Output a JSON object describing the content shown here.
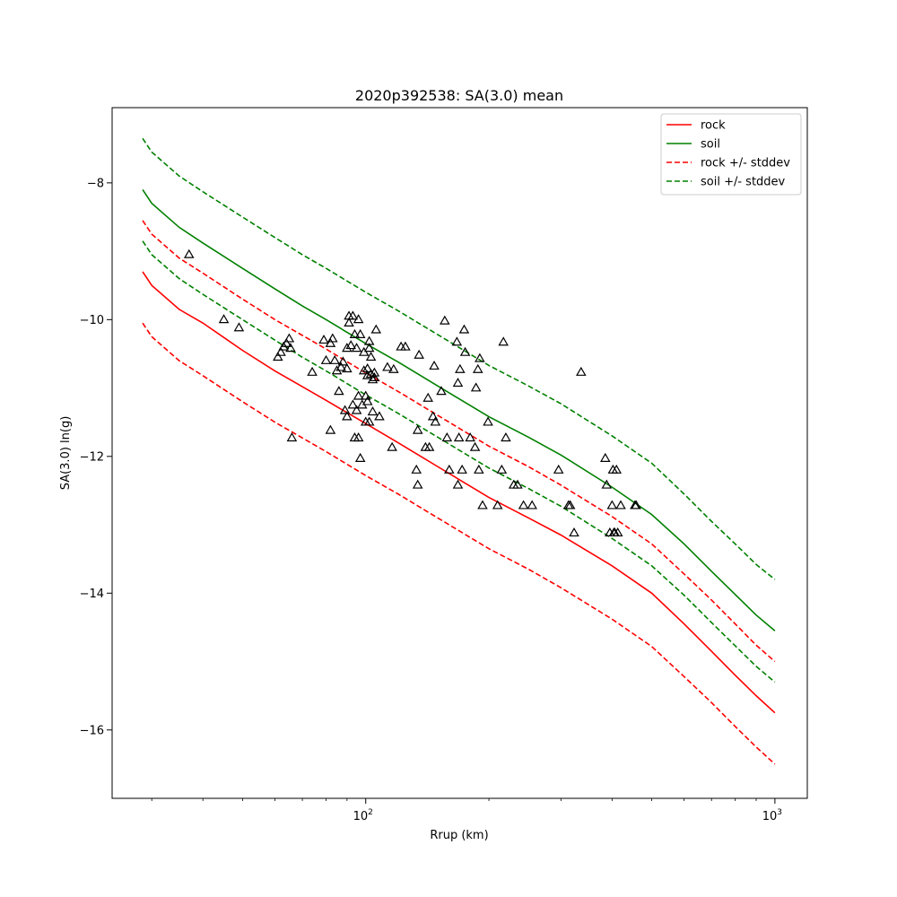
{
  "chart_data": {
    "type": "line",
    "title": "2020p392538: SA(3.0) mean",
    "xlabel": "Rrup (km)",
    "ylabel": "SA(3.0) ln(g)",
    "x_scale": "log",
    "xlim": [
      24,
      1200
    ],
    "ylim": [
      -17.0,
      -6.9
    ],
    "x_ticks": [
      {
        "value": 100,
        "base": "10",
        "exp": "2"
      },
      {
        "value": 1000,
        "base": "10",
        "exp": "3"
      }
    ],
    "y_ticks": [
      {
        "value": -8,
        "label": "−8"
      },
      {
        "value": -10,
        "label": "−10"
      },
      {
        "value": -12,
        "label": "−12"
      },
      {
        "value": -14,
        "label": "−14"
      },
      {
        "value": -16,
        "label": "−16"
      }
    ],
    "grid": false,
    "legend_position": "top-right",
    "series": [
      {
        "name": "rock",
        "color": "#ff0000",
        "dash": false,
        "x": [
          28.5,
          30,
          35,
          40,
          50,
          60,
          70,
          80,
          100,
          120,
          150,
          200,
          250,
          300,
          400,
          500,
          600,
          700,
          800,
          900,
          1000
        ],
        "y": [
          -9.3,
          -9.5,
          -9.85,
          -10.05,
          -10.45,
          -10.75,
          -10.98,
          -11.18,
          -11.52,
          -11.8,
          -12.15,
          -12.6,
          -12.9,
          -13.15,
          -13.6,
          -14.0,
          -14.45,
          -14.85,
          -15.2,
          -15.5,
          -15.75
        ]
      },
      {
        "name": "soil",
        "color": "#008000",
        "dash": false,
        "x": [
          28.5,
          30,
          35,
          40,
          50,
          60,
          70,
          80,
          100,
          120,
          150,
          200,
          250,
          300,
          400,
          500,
          600,
          700,
          800,
          900,
          1000
        ],
        "y": [
          -8.1,
          -8.3,
          -8.65,
          -8.88,
          -9.25,
          -9.55,
          -9.8,
          -10.0,
          -10.35,
          -10.62,
          -10.97,
          -11.42,
          -11.72,
          -11.98,
          -12.45,
          -12.85,
          -13.28,
          -13.68,
          -14.02,
          -14.32,
          -14.55
        ]
      },
      {
        "name": "rock +/- stddev",
        "color": "#ff0000",
        "dash": true,
        "x": [
          28.5,
          30,
          35,
          40,
          50,
          60,
          70,
          80,
          100,
          120,
          150,
          200,
          250,
          300,
          400,
          500,
          600,
          700,
          800,
          900,
          1000
        ],
        "y": [
          -8.55,
          -8.75,
          -9.1,
          -9.32,
          -9.7,
          -10.0,
          -10.23,
          -10.43,
          -10.78,
          -11.05,
          -11.4,
          -11.85,
          -12.15,
          -12.42,
          -12.88,
          -13.28,
          -13.72,
          -14.1,
          -14.45,
          -14.76,
          -15.0
        ]
      },
      {
        "name": "",
        "color": "#ff0000",
        "dash": true,
        "x": [
          28.5,
          30,
          35,
          40,
          50,
          60,
          70,
          80,
          100,
          120,
          150,
          200,
          250,
          300,
          400,
          500,
          600,
          700,
          800,
          900,
          1000
        ],
        "y": [
          -10.05,
          -10.25,
          -10.6,
          -10.82,
          -11.2,
          -11.5,
          -11.73,
          -11.93,
          -12.28,
          -12.55,
          -12.9,
          -13.35,
          -13.65,
          -13.92,
          -14.38,
          -14.78,
          -15.22,
          -15.6,
          -15.95,
          -16.25,
          -16.5
        ]
      },
      {
        "name": "soil +/- stddev",
        "color": "#008000",
        "dash": true,
        "x": [
          28.5,
          30,
          35,
          40,
          50,
          60,
          70,
          80,
          100,
          120,
          150,
          200,
          250,
          300,
          400,
          500,
          600,
          700,
          800,
          900,
          1000
        ],
        "y": [
          -7.35,
          -7.55,
          -7.9,
          -8.13,
          -8.5,
          -8.8,
          -9.05,
          -9.25,
          -9.6,
          -9.87,
          -10.22,
          -10.67,
          -10.97,
          -11.23,
          -11.7,
          -12.1,
          -12.55,
          -12.95,
          -13.28,
          -13.58,
          -13.8
        ]
      },
      {
        "name": "",
        "color": "#008000",
        "dash": true,
        "x": [
          28.5,
          30,
          35,
          40,
          50,
          60,
          70,
          80,
          100,
          120,
          150,
          200,
          250,
          300,
          400,
          500,
          600,
          700,
          800,
          900,
          1000
        ],
        "y": [
          -8.85,
          -9.05,
          -9.4,
          -9.63,
          -10.0,
          -10.3,
          -10.55,
          -10.75,
          -11.1,
          -11.37,
          -11.72,
          -12.17,
          -12.47,
          -12.73,
          -13.2,
          -13.6,
          -14.03,
          -14.43,
          -14.77,
          -15.07,
          -15.3
        ]
      }
    ],
    "observations": {
      "marker": "triangle",
      "color": "#000000",
      "points": [
        [
          37,
          -9.05
        ],
        [
          45,
          -10.0
        ],
        [
          49,
          -10.12
        ],
        [
          61,
          -10.55
        ],
        [
          62,
          -10.48
        ],
        [
          63,
          -10.4
        ],
        [
          64,
          -10.35
        ],
        [
          65,
          -10.28
        ],
        [
          65.5,
          -10.42
        ],
        [
          66,
          -11.73
        ],
        [
          74,
          -10.77
        ],
        [
          79,
          -10.3
        ],
        [
          80,
          -10.6
        ],
        [
          82,
          -11.62
        ],
        [
          82,
          -10.35
        ],
        [
          83,
          -10.28
        ],
        [
          84,
          -10.6
        ],
        [
          85,
          -10.75
        ],
        [
          86,
          -11.05
        ],
        [
          87,
          -10.7
        ],
        [
          88,
          -10.62
        ],
        [
          89,
          -11.33
        ],
        [
          90,
          -11.42
        ],
        [
          90,
          -10.72
        ],
        [
          90,
          -10.42
        ],
        [
          91,
          -10.05
        ],
        [
          91,
          -9.95
        ],
        [
          92,
          -10.38
        ],
        [
          93,
          -11.25
        ],
        [
          93,
          -9.95
        ],
        [
          94,
          -11.73
        ],
        [
          94,
          -10.22
        ],
        [
          95,
          -11.33
        ],
        [
          95,
          -10.42
        ],
        [
          96,
          -11.12
        ],
        [
          96,
          -11.73
        ],
        [
          96,
          -10.0
        ],
        [
          97,
          -10.22
        ],
        [
          97,
          -12.03
        ],
        [
          98,
          -11.25
        ],
        [
          99,
          -10.48
        ],
        [
          99,
          -10.75
        ],
        [
          100,
          -11.5
        ],
        [
          100,
          -11.12
        ],
        [
          101,
          -10.72
        ],
        [
          101,
          -10.82
        ],
        [
          101,
          -11.2
        ],
        [
          102,
          -10.32
        ],
        [
          102,
          -11.5
        ],
        [
          102,
          -10.42
        ],
        [
          103,
          -10.55
        ],
        [
          103,
          -10.8
        ],
        [
          104,
          -11.35
        ],
        [
          104,
          -10.88
        ],
        [
          105,
          -10.78
        ],
        [
          105,
          -10.85
        ],
        [
          106,
          -10.15
        ],
        [
          108,
          -11.42
        ],
        [
          113,
          -10.7
        ],
        [
          116,
          -11.87
        ],
        [
          117,
          -10.73
        ],
        [
          122,
          -10.4
        ],
        [
          125,
          -10.4
        ],
        [
          133,
          -12.2
        ],
        [
          134,
          -11.62
        ],
        [
          134,
          -12.42
        ],
        [
          135,
          -10.52
        ],
        [
          140,
          -11.87
        ],
        [
          142,
          -11.15
        ],
        [
          143,
          -11.87
        ],
        [
          146,
          -11.42
        ],
        [
          147,
          -10.68
        ],
        [
          148,
          -11.5
        ],
        [
          153,
          -11.05
        ],
        [
          156,
          -10.02
        ],
        [
          158,
          -11.73
        ],
        [
          160,
          -12.2
        ],
        [
          167,
          -10.33
        ],
        [
          168,
          -10.93
        ],
        [
          168,
          -12.42
        ],
        [
          169,
          -11.73
        ],
        [
          170,
          -10.73
        ],
        [
          172,
          -12.2
        ],
        [
          174,
          -10.15
        ],
        [
          175,
          -10.48
        ],
        [
          180,
          -11.73
        ],
        [
          185,
          -11.87
        ],
        [
          186,
          -11.0
        ],
        [
          188,
          -10.73
        ],
        [
          189,
          -12.2
        ],
        [
          190,
          -10.57
        ],
        [
          193,
          -12.72
        ],
        [
          199,
          -11.5
        ],
        [
          210,
          -12.72
        ],
        [
          215,
          -12.2
        ],
        [
          217,
          -10.33
        ],
        [
          220,
          -11.73
        ],
        [
          230,
          -12.42
        ],
        [
          235,
          -12.42
        ],
        [
          243,
          -12.72
        ],
        [
          255,
          -12.72
        ],
        [
          296,
          -12.2
        ],
        [
          313,
          -12.72
        ],
        [
          316,
          -12.72
        ],
        [
          323,
          -13.12
        ],
        [
          336,
          -10.77
        ],
        [
          385,
          -12.03
        ],
        [
          388,
          -12.42
        ],
        [
          395,
          -13.12
        ],
        [
          400,
          -12.72
        ],
        [
          402,
          -12.2
        ],
        [
          404,
          -13.12
        ],
        [
          406,
          -13.12
        ],
        [
          410,
          -12.2
        ],
        [
          413,
          -13.12
        ],
        [
          420,
          -12.72
        ],
        [
          455,
          -12.72
        ],
        [
          458,
          -12.72
        ]
      ]
    }
  }
}
